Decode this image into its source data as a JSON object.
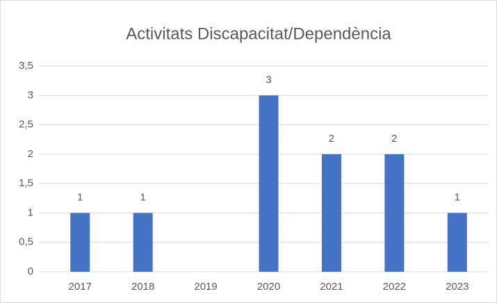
{
  "chart_data": {
    "type": "bar",
    "title": "Activitats Discapacitat/Dependència",
    "categories": [
      "2017",
      "2018",
      "2019",
      "2020",
      "2021",
      "2022",
      "2023"
    ],
    "values": [
      1,
      1,
      null,
      3,
      2,
      2,
      1
    ],
    "color": "#4472c4",
    "ylim": [
      0,
      3.5
    ],
    "yticks": [
      0,
      {
        "value": 0.5,
        "label": "0,5"
      },
      1,
      {
        "value": 1.5,
        "label": "1,5"
      },
      2,
      {
        "value": 2.5,
        "label": "2,5"
      },
      3,
      {
        "value": 3.5,
        "label": "3,5"
      }
    ],
    "grid": true
  }
}
